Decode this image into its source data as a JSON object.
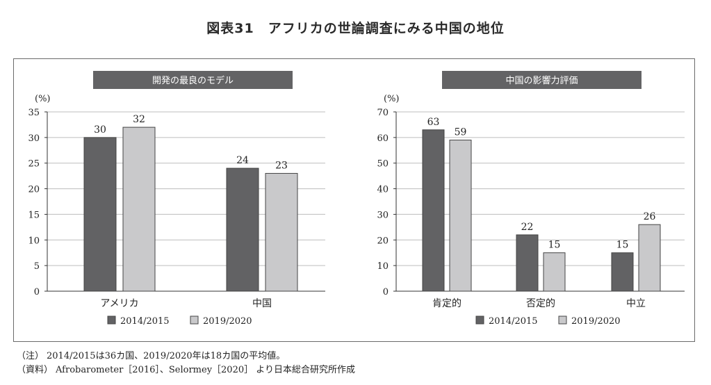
{
  "title": "図表31　アフリカの世論調査にみる中国の地位",
  "colors": {
    "series_dark": "#626264",
    "series_light": "#c9c9cb",
    "header_bg": "#636365",
    "header_text": "#ffffff",
    "grid": "#bdbdbd",
    "axis": "#333333"
  },
  "chart_data": [
    {
      "type": "bar",
      "title": "開発の最良のモデル",
      "ylabel": "(%)",
      "ylim": [
        0,
        35
      ],
      "yticks": [
        0,
        5,
        10,
        15,
        20,
        25,
        30,
        35
      ],
      "categories": [
        "アメリカ",
        "中国"
      ],
      "series": [
        {
          "name": "2014/2015",
          "values": [
            30,
            24
          ]
        },
        {
          "name": "2019/2020",
          "values": [
            32,
            23
          ]
        }
      ],
      "grid": true,
      "legend": "bottom-center"
    },
    {
      "type": "bar",
      "title": "中国の影響力評価",
      "ylabel": "(%)",
      "ylim": [
        0,
        70
      ],
      "yticks": [
        0,
        10,
        20,
        30,
        40,
        50,
        60,
        70
      ],
      "categories": [
        "肯定的",
        "否定的",
        "中立"
      ],
      "series": [
        {
          "name": "2014/2015",
          "values": [
            63,
            22,
            15
          ]
        },
        {
          "name": "2019/2020",
          "values": [
            59,
            15,
            26
          ]
        }
      ],
      "grid": true,
      "legend": "bottom-center"
    }
  ],
  "notes": [
    {
      "tag": "（注）",
      "text": "2014/2015は36カ国、2019/2020年は18カ国の平均値。"
    },
    {
      "tag": "（資料）",
      "text": "Afrobarometer［2016］、Selormey［2020］ より日本総合研究所作成"
    }
  ]
}
